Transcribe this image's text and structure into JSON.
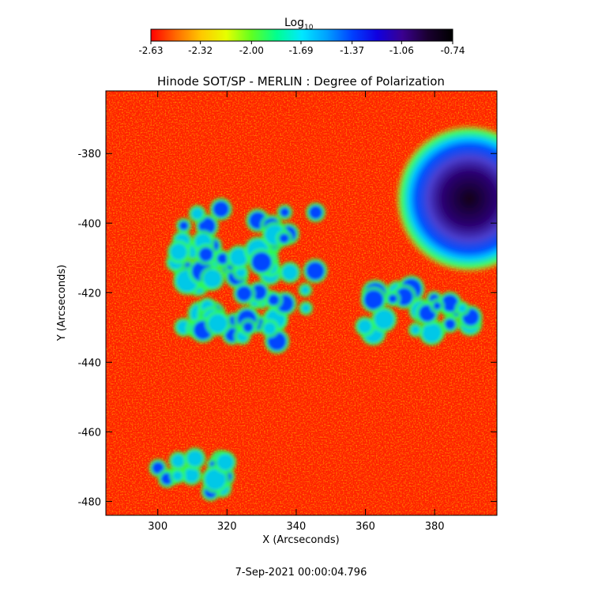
{
  "colorbar": {
    "title": "Log",
    "title_sub": "10",
    "ticks": [
      "-2.63",
      "-2.32",
      "-2.00",
      "-1.69",
      "-1.37",
      "-1.06",
      "-0.74"
    ],
    "range": [
      -2.63,
      -0.74
    ],
    "colors": [
      "#ff0000",
      "#ff6a00",
      "#ffc800",
      "#e6ff00",
      "#60ff20",
      "#00ff90",
      "#00e8ff",
      "#00a0ff",
      "#0040ff",
      "#1000e0",
      "#3a0090",
      "#1a0030",
      "#000000"
    ]
  },
  "footer": {
    "timestamp": "7-Sep-2021 00:00:04.796"
  },
  "chart_data": {
    "type": "heatmap",
    "title": "Hinode SOT/SP - MERLIN : Degree of Polarization",
    "xlabel": "X (Arcseconds)",
    "ylabel": "Y (Arcseconds)",
    "xlim": [
      285,
      398
    ],
    "ylim": [
      -484,
      -362
    ],
    "xticks": [
      300,
      320,
      340,
      360,
      380
    ],
    "yticks": [
      -380,
      -400,
      -420,
      -440,
      -460,
      -480
    ],
    "value_scale": "log10",
    "value_range": [
      -2.63,
      -0.74
    ],
    "features": [
      {
        "name": "sunspot",
        "x": 390,
        "y": -393,
        "value": -0.74
      },
      {
        "name": "plage-cluster",
        "x": 325,
        "y": -415,
        "value": -1.2
      },
      {
        "name": "plage-patch-west",
        "x": 375,
        "y": -425,
        "value": -1.4
      },
      {
        "name": "plage-patch-south",
        "x": 310,
        "y": -473,
        "value": -1.4
      }
    ]
  }
}
